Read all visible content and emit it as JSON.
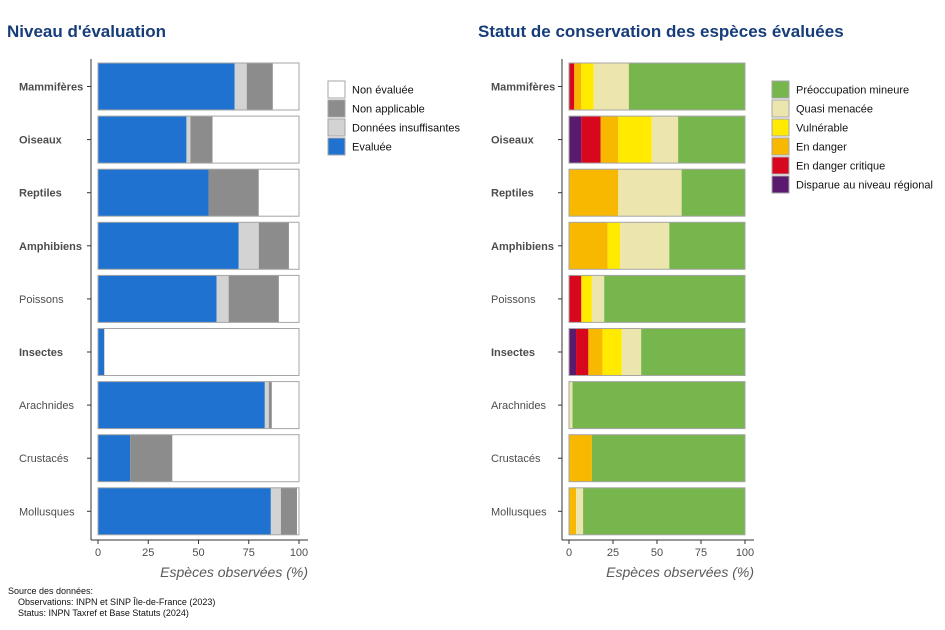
{
  "chart_data": [
    {
      "type": "bar",
      "orientation": "horizontal",
      "stacked": true,
      "title": "Niveau d'évaluation",
      "xlabel": "Espèces observées (%)",
      "ylabel": "",
      "xlim": [
        0,
        100
      ],
      "xticks": [
        "0",
        "25",
        "50",
        "75",
        "100"
      ],
      "legend_position": "right",
      "categories": [
        "Mammifères",
        "Oiseaux",
        "Reptiles",
        "Amphibiens",
        "Poissons",
        "Insectes",
        "Arachnides",
        "Crustacés",
        "Mollusques"
      ],
      "bold_categories": [
        true,
        true,
        true,
        true,
        false,
        true,
        false,
        false,
        false
      ],
      "series": [
        {
          "name": "Evaluée",
          "color": "#1f72cf",
          "values": [
            68,
            44,
            55,
            70,
            59,
            3,
            83,
            16,
            86
          ]
        },
        {
          "name": "Données insuffisantes",
          "color": "#d3d3d3",
          "values": [
            6,
            2,
            0,
            10,
            6,
            0.5,
            2,
            0,
            5
          ]
        },
        {
          "name": "Non applicable",
          "color": "#8c8c8c",
          "values": [
            13,
            11,
            25,
            15,
            25,
            0,
            1.5,
            21,
            8
          ]
        },
        {
          "name": "Non évaluée",
          "color": "#ffffff",
          "values": [
            13,
            43,
            20,
            5,
            10,
            96.5,
            13.5,
            63,
            1
          ]
        }
      ],
      "legend_order": [
        "Non évaluée",
        "Non applicable",
        "Données insuffisantes",
        "Evaluée"
      ]
    },
    {
      "type": "bar",
      "orientation": "horizontal",
      "stacked": true,
      "title": "Statut de conservation des espèces évaluées",
      "xlabel": "Espèces observées (%)",
      "ylabel": "",
      "xlim": [
        0,
        100
      ],
      "xticks": [
        "0",
        "25",
        "50",
        "75",
        "100"
      ],
      "legend_position": "right",
      "categories": [
        "Mammifères",
        "Oiseaux",
        "Reptiles",
        "Amphibiens",
        "Poissons",
        "Insectes",
        "Arachnides",
        "Crustacés",
        "Mollusques"
      ],
      "bold_categories": [
        true,
        true,
        true,
        true,
        false,
        true,
        false,
        false,
        false
      ],
      "series": [
        {
          "name": "Disparue au niveau régional",
          "color": "#5a1a6e",
          "values": [
            0,
            7,
            0,
            0,
            0,
            4,
            0,
            0,
            0
          ]
        },
        {
          "name": "En danger critique",
          "color": "#d7071e",
          "values": [
            3,
            11,
            0,
            0,
            7,
            7,
            0,
            0,
            0
          ]
        },
        {
          "name": "En danger",
          "color": "#f9b800",
          "values": [
            4,
            10,
            28,
            22,
            0,
            8,
            0,
            13,
            4
          ]
        },
        {
          "name": "Vulnérable",
          "color": "#ffea00",
          "values": [
            7,
            19,
            0,
            7,
            6,
            11,
            0,
            0,
            0
          ]
        },
        {
          "name": "Quasi menacée",
          "color": "#ece6ae",
          "values": [
            20,
            15,
            36,
            28,
            7,
            11,
            2,
            0,
            4
          ]
        },
        {
          "name": "Préoccupation mineure",
          "color": "#77b64c",
          "values": [
            66,
            38,
            36,
            43,
            80,
            59,
            98,
            87,
            92
          ]
        }
      ],
      "legend_order": [
        "Préoccupation mineure",
        "Quasi menacée",
        "Vulnérable",
        "En danger",
        "En danger critique",
        "Disparue au niveau régional"
      ]
    }
  ],
  "source": {
    "line1": "Source des données:",
    "line2": "Observations: INPN et SINP Île-de-France (2023)",
    "line3": "Status: INPN Taxref et Base Statuts (2024)"
  }
}
